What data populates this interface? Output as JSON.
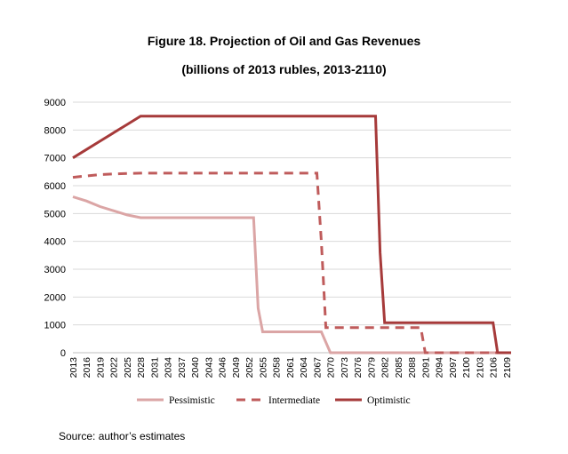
{
  "chart_data": {
    "type": "line",
    "title": "Figure 18. Projection of Oil and Gas Revenues",
    "subtitle": "(billions of 2013 rubles, 2013-2110)",
    "xlabel": "",
    "ylabel": "",
    "ylim": [
      0,
      9000
    ],
    "yticks": [
      0,
      1000,
      2000,
      3000,
      4000,
      5000,
      6000,
      7000,
      8000,
      9000
    ],
    "xlim": [
      2013,
      2110
    ],
    "x_tick_labels": [
      "2013",
      "2016",
      "2019",
      "2022",
      "2025",
      "2028",
      "2031",
      "2034",
      "2037",
      "2040",
      "2043",
      "2046",
      "2049",
      "2052",
      "2055",
      "2058",
      "2061",
      "2064",
      "2067",
      "2070",
      "2073",
      "2076",
      "2079",
      "2082",
      "2085",
      "2088",
      "2091",
      "2094",
      "2097",
      "2100",
      "2103",
      "2106",
      "2109"
    ],
    "grid": true,
    "legend_position": "bottom",
    "series": [
      {
        "name": "Pessimistic",
        "color": "#dba5a5",
        "dash": "solid",
        "x": [
          2013,
          2016,
          2019,
          2022,
          2025,
          2028,
          2030,
          2053,
          2054,
          2055,
          2068,
          2070,
          2110
        ],
        "y": [
          5600,
          5450,
          5250,
          5100,
          4950,
          4850,
          4850,
          4850,
          1600,
          750,
          750,
          0,
          0
        ]
      },
      {
        "name": "Intermediate",
        "color": "#bf5b5b",
        "dash": "dashed",
        "x": [
          2013,
          2016,
          2019,
          2022,
          2025,
          2028,
          2030,
          2067,
          2068,
          2069,
          2070,
          2090,
          2091,
          2110
        ],
        "y": [
          6300,
          6350,
          6400,
          6420,
          6440,
          6450,
          6450,
          6450,
          4000,
          900,
          900,
          900,
          0,
          0
        ]
      },
      {
        "name": "Optimistic",
        "color": "#a63a3a",
        "dash": "solid",
        "x": [
          2013,
          2016,
          2019,
          2022,
          2025,
          2028,
          2030,
          2080,
          2081,
          2082,
          2106,
          2107,
          2110
        ],
        "y": [
          7000,
          7300,
          7600,
          7900,
          8200,
          8500,
          8500,
          8500,
          3600,
          1080,
          1080,
          0,
          0
        ]
      }
    ]
  },
  "source_text": "Source: author’s estimates"
}
